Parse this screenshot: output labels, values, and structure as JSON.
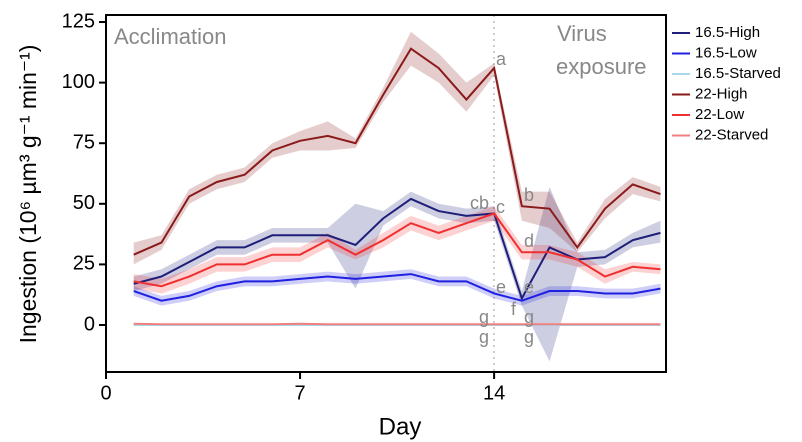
{
  "chart_data": {
    "type": "line",
    "xlabel": "Day",
    "ylabel": "Ingestion (10⁶ µm³ g⁻¹ min⁻¹)",
    "x": [
      1,
      2,
      3,
      4,
      5,
      6,
      7,
      8,
      9,
      10,
      11,
      12,
      13,
      14,
      15,
      16,
      17,
      18,
      19,
      20
    ],
    "xlim": [
      0,
      20.2
    ],
    "xticks": [
      0,
      7,
      14
    ],
    "ylim": [
      -19.4,
      127.9
    ],
    "yticks": [
      0,
      25,
      50,
      75,
      100,
      125
    ],
    "series": [
      {
        "name": "16.5-High",
        "color": "#1f1f7a",
        "values": [
          17,
          20,
          26,
          32,
          32,
          37,
          37,
          37,
          33,
          44,
          52,
          47,
          45,
          46,
          11,
          32,
          27,
          28,
          35,
          38
        ],
        "lower": [
          14,
          17,
          23,
          29,
          29,
          34,
          34,
          34,
          15,
          41,
          49,
          44,
          42,
          43,
          8,
          -15,
          24,
          25,
          32,
          34
        ],
        "upper": [
          20,
          23,
          29,
          35,
          35,
          40,
          40,
          40,
          50,
          47,
          55,
          50,
          48,
          49,
          14,
          57,
          30,
          31,
          38,
          43
        ]
      },
      {
        "name": "16.5-Low",
        "color": "#2020e0",
        "values": [
          14,
          10,
          12,
          16,
          18,
          18,
          19,
          20,
          19,
          20,
          21,
          18,
          18,
          13,
          10,
          14,
          14,
          13,
          13,
          15
        ],
        "lower": [
          12,
          8,
          10,
          14,
          16,
          16,
          17,
          18,
          17,
          18,
          19,
          16,
          16,
          11,
          8,
          12,
          12,
          11,
          11,
          13
        ],
        "upper": [
          16,
          12,
          14,
          18,
          20,
          20,
          21,
          22,
          21,
          22,
          23,
          20,
          20,
          15,
          12,
          16,
          16,
          15,
          15,
          17
        ]
      },
      {
        "name": "16.5-Starved",
        "color": "#a8d8ea",
        "values": [
          0,
          0,
          0,
          0,
          0,
          0,
          0,
          0,
          0,
          0,
          0,
          0,
          0,
          0,
          0,
          0,
          0,
          0,
          0,
          0
        ]
      },
      {
        "name": "22-High",
        "color": "#8b1a1a",
        "values": [
          29,
          34,
          53,
          59,
          62,
          72,
          76,
          78,
          75,
          95,
          114,
          106,
          93,
          106,
          49,
          48,
          32,
          48,
          58,
          54
        ],
        "lower": [
          25,
          31,
          50,
          56,
          59,
          69,
          72,
          72,
          73,
          92,
          107,
          100,
          88,
          103,
          43,
          40,
          30,
          44,
          54,
          51
        ],
        "upper": [
          34,
          37,
          56,
          62,
          65,
          75,
          80,
          84,
          77,
          98,
          121,
          112,
          100,
          108,
          55,
          55,
          34,
          52,
          61,
          57
        ]
      },
      {
        "name": "22-Low",
        "color": "#f03030",
        "values": [
          18,
          16,
          20,
          25,
          25,
          29,
          29,
          35,
          29,
          35,
          42,
          38,
          42,
          46,
          30,
          30,
          27,
          20,
          24,
          23
        ],
        "lower": [
          15,
          13,
          17,
          22,
          22,
          26,
          26,
          32,
          27,
          32,
          39,
          35,
          39,
          43,
          27,
          27,
          24,
          17,
          22,
          21
        ],
        "upper": [
          21,
          19,
          23,
          28,
          28,
          32,
          32,
          38,
          31,
          38,
          45,
          41,
          45,
          49,
          33,
          33,
          30,
          23,
          26,
          25
        ]
      },
      {
        "name": "22-Starved",
        "color": "#f08080",
        "values": [
          0.5,
          0.3,
          0.3,
          0.3,
          0.3,
          0.3,
          0.5,
          0.3,
          0.3,
          0.3,
          0.3,
          0.3,
          0.3,
          0.3,
          0.3,
          0.3,
          0.3,
          0.3,
          0.3,
          0.3
        ]
      }
    ],
    "annotations": [
      "Acclimation",
      "Virus",
      "exposure",
      "a",
      "cb",
      "c",
      "b",
      "d",
      "e",
      "f",
      "e",
      "g",
      "g",
      "g",
      "g"
    ]
  }
}
